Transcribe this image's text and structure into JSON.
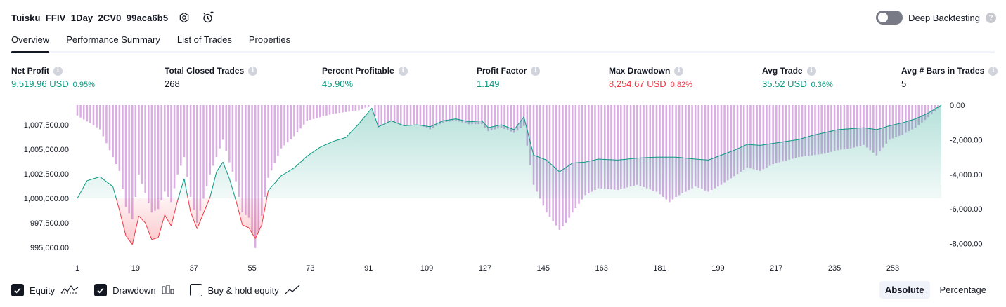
{
  "header": {
    "title": "Tuisku_FFIV_1Day_2CV0_99aca6b5",
    "deep_backtesting_label": "Deep Backtesting",
    "help_mark": "?"
  },
  "tabs": [
    "Overview",
    "Performance Summary",
    "List of Trades",
    "Properties"
  ],
  "info_mark": "i",
  "metrics": [
    {
      "label": "Net Profit",
      "value": "9,519.96 USD",
      "pct": "0.95%",
      "color": "#089981"
    },
    {
      "label": "Total Closed Trades",
      "value": "268",
      "pct": "",
      "color": "#131722"
    },
    {
      "label": "Percent Profitable",
      "value": "45.90%",
      "pct": "",
      "color": "#089981"
    },
    {
      "label": "Profit Factor",
      "value": "1.149",
      "pct": "",
      "color": "#089981"
    },
    {
      "label": "Max Drawdown",
      "value": "8,254.67 USD",
      "pct": "0.82%",
      "color": "#f23645"
    },
    {
      "label": "Avg Trade",
      "value": "35.52 USD",
      "pct": "0.36%",
      "color": "#089981"
    },
    {
      "label": "Avg # Bars in Trades",
      "value": "5",
      "pct": "",
      "color": "#131722"
    }
  ],
  "legend": {
    "equity": "Equity",
    "drawdown": "Drawdown",
    "buy_hold": "Buy & hold equity"
  },
  "mode": {
    "absolute": "Absolute",
    "percentage": "Percentage"
  },
  "colors": {
    "equity_up_line": "#089981",
    "equity_down_line": "#f23645",
    "drawdown_bar": "#ce93d8",
    "text": "#131722",
    "grid": "#e0e3eb"
  },
  "chart_data": {
    "type": "area",
    "x_ticks": [
      "1",
      "19",
      "37",
      "55",
      "73",
      "91",
      "109",
      "127",
      "145",
      "163",
      "181",
      "199",
      "217",
      "235",
      "253"
    ],
    "y_left_ticks": [
      "1,007,500.00",
      "1,005,000.00",
      "1,002,500.00",
      "1,000,000.00",
      "997,500.00",
      "995,000.00"
    ],
    "y_right_ticks": [
      "0.00",
      "-2,000.00",
      "-4,000.00",
      "-6,000.00",
      "-8,000.00"
    ],
    "y_left_range": [
      994500,
      1009500
    ],
    "y_right_range": [
      -8500,
      0
    ],
    "baseline": 1000000,
    "series": [
      {
        "name": "Equity",
        "anchors": [
          [
            1,
            1000000
          ],
          [
            4,
            1001800
          ],
          [
            8,
            1002200
          ],
          [
            12,
            1001200
          ],
          [
            14,
            998800
          ],
          [
            16,
            996200
          ],
          [
            18,
            995300
          ],
          [
            20,
            998200
          ],
          [
            22,
            997500
          ],
          [
            24,
            995800
          ],
          [
            26,
            996000
          ],
          [
            28,
            998300
          ],
          [
            30,
            997200
          ],
          [
            32,
            999800
          ],
          [
            34,
            1002000
          ],
          [
            36,
            998600
          ],
          [
            38,
            996900
          ],
          [
            40,
            998500
          ],
          [
            42,
            1000100
          ],
          [
            44,
            1002700
          ],
          [
            46,
            1003700
          ],
          [
            48,
            1002000
          ],
          [
            50,
            999800
          ],
          [
            52,
            997300
          ],
          [
            54,
            997000
          ],
          [
            56,
            995900
          ],
          [
            58,
            997300
          ],
          [
            60,
            1000800
          ],
          [
            64,
            1002300
          ],
          [
            68,
            1003100
          ],
          [
            72,
            1004300
          ],
          [
            76,
            1005200
          ],
          [
            80,
            1005800
          ],
          [
            84,
            1006200
          ],
          [
            88,
            1007600
          ],
          [
            92,
            1009200
          ],
          [
            94,
            1007300
          ],
          [
            98,
            1007900
          ],
          [
            102,
            1007400
          ],
          [
            106,
            1007500
          ],
          [
            110,
            1007300
          ],
          [
            114,
            1007900
          ],
          [
            118,
            1008100
          ],
          [
            122,
            1007800
          ],
          [
            126,
            1007900
          ],
          [
            128,
            1007200
          ],
          [
            132,
            1007500
          ],
          [
            136,
            1007000
          ],
          [
            139,
            1008300
          ],
          [
            142,
            1004400
          ],
          [
            146,
            1003900
          ],
          [
            150,
            1002700
          ],
          [
            154,
            1003600
          ],
          [
            158,
            1003700
          ],
          [
            162,
            1004000
          ],
          [
            168,
            1003900
          ],
          [
            174,
            1004100
          ],
          [
            180,
            1004200
          ],
          [
            186,
            1004200
          ],
          [
            192,
            1004000
          ],
          [
            196,
            1003900
          ],
          [
            200,
            1004400
          ],
          [
            204,
            1004900
          ],
          [
            208,
            1005500
          ],
          [
            212,
            1005400
          ],
          [
            216,
            1005600
          ],
          [
            220,
            1005800
          ],
          [
            224,
            1006000
          ],
          [
            228,
            1006400
          ],
          [
            232,
            1006700
          ],
          [
            236,
            1007000
          ],
          [
            240,
            1007100
          ],
          [
            244,
            1007200
          ],
          [
            248,
            1007000
          ],
          [
            252,
            1007400
          ],
          [
            256,
            1007700
          ],
          [
            260,
            1008100
          ],
          [
            264,
            1008700
          ],
          [
            268,
            1009500
          ]
        ]
      },
      {
        "name": "Drawdown",
        "anchors": [
          [
            1,
            -600
          ],
          [
            8,
            -1400
          ],
          [
            14,
            -3800
          ],
          [
            16,
            -5900
          ],
          [
            18,
            -6600
          ],
          [
            20,
            -4000
          ],
          [
            24,
            -6200
          ],
          [
            26,
            -6000
          ],
          [
            28,
            -5000
          ],
          [
            30,
            -5600
          ],
          [
            32,
            -4000
          ],
          [
            34,
            -3000
          ],
          [
            36,
            -5300
          ],
          [
            38,
            -6800
          ],
          [
            40,
            -5400
          ],
          [
            42,
            -4000
          ],
          [
            44,
            -3000
          ],
          [
            46,
            -2000
          ],
          [
            48,
            -3300
          ],
          [
            50,
            -4400
          ],
          [
            52,
            -6200
          ],
          [
            54,
            -6500
          ],
          [
            56,
            -8250
          ],
          [
            58,
            -6400
          ],
          [
            60,
            -4200
          ],
          [
            64,
            -2500
          ],
          [
            68,
            -1800
          ],
          [
            72,
            -900
          ],
          [
            80,
            -500
          ],
          [
            88,
            -300
          ],
          [
            92,
            0
          ],
          [
            94,
            -1300
          ],
          [
            98,
            -900
          ],
          [
            102,
            -1200
          ],
          [
            106,
            -1100
          ],
          [
            110,
            -1400
          ],
          [
            114,
            -1000
          ],
          [
            118,
            -900
          ],
          [
            122,
            -1100
          ],
          [
            126,
            -1100
          ],
          [
            128,
            -1500
          ],
          [
            132,
            -1300
          ],
          [
            136,
            -1600
          ],
          [
            139,
            -1200
          ],
          [
            142,
            -4600
          ],
          [
            146,
            -6200
          ],
          [
            150,
            -7200
          ],
          [
            152,
            -6800
          ],
          [
            154,
            -6200
          ],
          [
            158,
            -5200
          ],
          [
            162,
            -4800
          ],
          [
            168,
            -4900
          ],
          [
            174,
            -4600
          ],
          [
            180,
            -5000
          ],
          [
            184,
            -5600
          ],
          [
            186,
            -5300
          ],
          [
            192,
            -4700
          ],
          [
            196,
            -5000
          ],
          [
            200,
            -4600
          ],
          [
            204,
            -4100
          ],
          [
            208,
            -3600
          ],
          [
            212,
            -3800
          ],
          [
            216,
            -3400
          ],
          [
            220,
            -3200
          ],
          [
            224,
            -3000
          ],
          [
            228,
            -2900
          ],
          [
            232,
            -2800
          ],
          [
            236,
            -2600
          ],
          [
            240,
            -2500
          ],
          [
            244,
            -2300
          ],
          [
            248,
            -2900
          ],
          [
            252,
            -2000
          ],
          [
            256,
            -1700
          ],
          [
            260,
            -1300
          ],
          [
            264,
            -700
          ],
          [
            268,
            0
          ]
        ]
      }
    ]
  }
}
